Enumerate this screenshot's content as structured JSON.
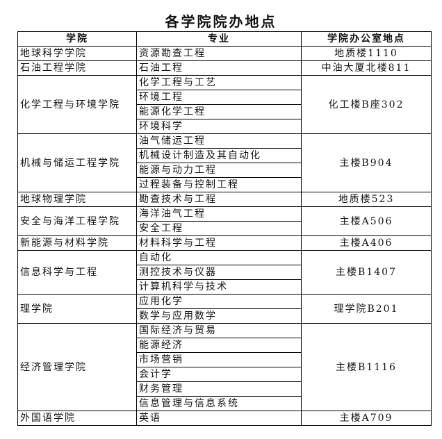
{
  "title": "各学院院办地点",
  "headers": [
    "学院",
    "专业",
    "学院办公室地点"
  ],
  "rows": [
    {
      "college": "地球科学学院",
      "majors": [
        "资源勘查工程"
      ],
      "office": "地质楼1110"
    },
    {
      "college": "石油工程学院",
      "majors": [
        "石油工程"
      ],
      "office": "中油大厦北楼811"
    },
    {
      "college": "化学工程与环境学院",
      "majors": [
        "化学工程与工艺",
        "环境工程",
        "能源化学工程",
        "环境科学"
      ],
      "office": "化工楼B座302"
    },
    {
      "college": "机械与储运工程学院",
      "majors": [
        "油气储运工程",
        "机械设计制造及其自动化",
        "能源与动力工程",
        "过程装备与控制工程"
      ],
      "office": "主楼B904"
    },
    {
      "college": "地球物理学院",
      "majors": [
        "勘查技术与工程"
      ],
      "office": "地质楼523"
    },
    {
      "college": "安全与海洋工程学院",
      "majors": [
        "海洋油气工程",
        "安全工程"
      ],
      "office": "主楼A506"
    },
    {
      "college": "新能源与材料学院",
      "majors": [
        "材料科学与工程"
      ],
      "office": "主楼A406"
    },
    {
      "college": "信息科学与工程",
      "majors": [
        "自动化",
        "测控技术与仪器",
        "计算机科学与技术"
      ],
      "office": "主楼B1407"
    },
    {
      "college": "理学院",
      "majors": [
        "应用化学",
        "数学与应用数学"
      ],
      "office": "理学院B201"
    },
    {
      "college": "经济管理学院",
      "majors": [
        "国际经济与贸易",
        "能源经济",
        "市场营销",
        "会计学",
        "财务管理",
        "信息管理与信息系统"
      ],
      "office": "主楼B1116"
    },
    {
      "college": "外国语学院",
      "majors": [
        "英语"
      ],
      "office": "主楼A709"
    }
  ]
}
